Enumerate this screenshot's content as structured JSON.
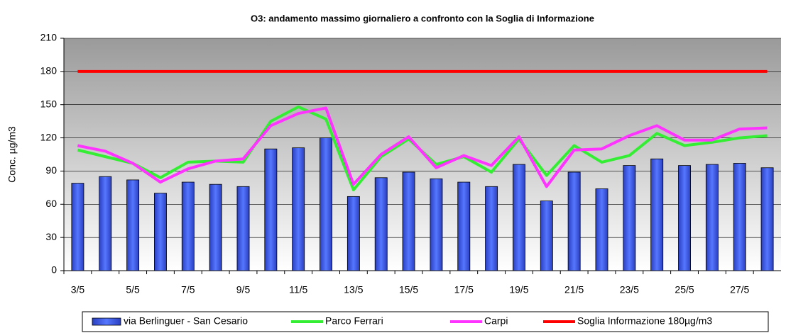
{
  "chart_data": {
    "type": "combo",
    "title": "O3: andamento massimo giornaliero a confronto con la Soglia di Informazione",
    "y_label": "Conc. µg/m3",
    "categories": [
      "3/5",
      null,
      "5/5",
      null,
      "7/5",
      null,
      "9/5",
      null,
      "11/5",
      null,
      "13/5",
      null,
      "15/5",
      null,
      "17/5",
      null,
      "19/5",
      null,
      "21/5",
      null,
      "23/5",
      null,
      "25/5",
      null,
      "27/5",
      null
    ],
    "series": [
      {
        "name": "via Berlinguer - San Cesario",
        "type": "bar",
        "color": "#3b5bdb",
        "values": [
          79,
          85,
          82,
          70,
          80,
          78,
          76,
          110,
          111,
          120,
          67,
          84,
          89,
          83,
          80,
          76,
          96,
          63,
          89,
          74,
          95,
          101,
          95,
          96,
          97,
          93
        ]
      },
      {
        "name": "Parco Ferrari",
        "type": "line",
        "color": "#33ee33",
        "values": [
          109,
          103,
          97,
          84,
          98,
          99,
          98,
          135,
          148,
          137,
          73,
          103,
          119,
          96,
          103,
          89,
          119,
          86,
          113,
          98,
          104,
          124,
          113,
          116,
          120,
          122
        ]
      },
      {
        "name": "Carpi",
        "type": "line",
        "color": "#ff33ff",
        "values": [
          113,
          108,
          97,
          80,
          92,
          99,
          101,
          131,
          142,
          147,
          78,
          105,
          121,
          93,
          104,
          95,
          121,
          76,
          109,
          110,
          122,
          131,
          118,
          118,
          128,
          129
        ]
      },
      {
        "name": "Soglia Informazione 180µg/m3",
        "type": "line",
        "color": "#ff0000",
        "values": [
          180,
          180,
          180,
          180,
          180,
          180,
          180,
          180,
          180,
          180,
          180,
          180,
          180,
          180,
          180,
          180,
          180,
          180,
          180,
          180,
          180,
          180,
          180,
          180,
          180,
          180
        ]
      }
    ],
    "ylim": [
      0,
      210
    ],
    "yticks": [
      0,
      30,
      60,
      90,
      120,
      150,
      180,
      210
    ],
    "grid": true,
    "legend": "bottom"
  }
}
